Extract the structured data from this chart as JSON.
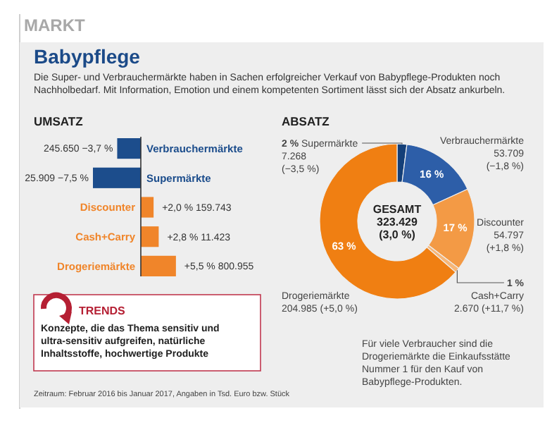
{
  "chart_data": [
    {
      "type": "other",
      "title": "Babypflege",
      "subtitle": "Die Super- und Verbrauchermärkte haben in Sachen erfolgreicher Verkauf von Babypflege-Produkten noch Nachholbedarf. Mit Information, Emotion und einem kompetenten Sortiment lässt sich der Absatz ankurbeln.",
      "annotations": [
        "MARKT",
        "Zeitraum: Februar 2016 bis Januar 2017, Angaben in Tsd. Euro bzw. Stück"
      ]
    },
    {
      "type": "bar",
      "orientation": "horizontal",
      "title": "UMSATZ",
      "categories": [
        "Verbrauchermärkte",
        "Supermärkte",
        "Discounter",
        "Cash+Carry",
        "Drogeriemärkte"
      ],
      "values": [
        -3.7,
        -7.5,
        2.0,
        2.8,
        5.5
      ],
      "colors": [
        "#1c4d8c",
        "#1c4d8c",
        "#f0852a",
        "#f0852a",
        "#f0852a"
      ],
      "value_labels": [
        "245.650 −3,7 %",
        "25.909 −7,5 %",
        "+2,0 % 159.743",
        "+2,8 % 11.423",
        "+5,5 % 800.955"
      ]
    },
    {
      "type": "other",
      "title": "TRENDS",
      "annotations": [
        "Konzepte, die das Thema sensitiv und ultra-sensitiv aufgreifen, natürliche Inhaltsstoffe, hochwertige Produkte"
      ]
    },
    {
      "type": "donut",
      "title": "ABSATZ",
      "categories": [
        "Supermärkte",
        "Verbrauchermärkte",
        "Discounter",
        "Cash+Carry",
        "Drogeriemärkte"
      ],
      "values": [
        2,
        16,
        17,
        1,
        63
      ],
      "colors": [
        "#143f78",
        "#2d5ea8",
        "#f39a45",
        "#f7b677",
        "#f07f12"
      ],
      "value_labels": [
        "2 %",
        "16 %",
        "17 %",
        "1 %",
        "63 %"
      ],
      "annotations": [
        "7.268\n(−3,5 %)",
        "53.709\n(−1,8 %)",
        "54.797\n(+1,8 %)",
        "2.670 (+11,7 %)",
        "204.985 (+5,0 %)",
        "GESAMT\n323.429\n(3,0 %)",
        "Für viele Verbraucher sind die Drogeriemärkte die Einkaufsstätte Nummer 1 für den Kauf von Babypflege-Produkten."
      ]
    }
  ]
}
